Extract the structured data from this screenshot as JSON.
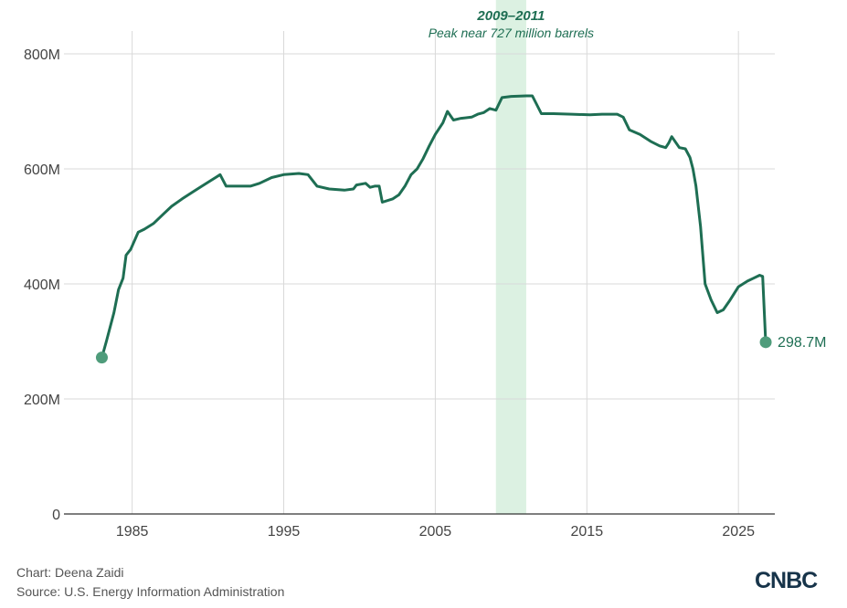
{
  "chart_data": {
    "type": "line",
    "title": "",
    "xlabel": "",
    "ylabel": "",
    "xlim": [
      1980.5,
      2027.4
    ],
    "ylim": [
      0,
      800000000
    ],
    "x_ticks": [
      1985,
      1995,
      2005,
      2015,
      2025
    ],
    "y_ticks": [
      0,
      200000000,
      400000000,
      600000000,
      800000000
    ],
    "y_tick_labels": [
      "0",
      "200M",
      "400M",
      "600M",
      "800M"
    ],
    "grid": true,
    "highlight": {
      "x_start": 2009.0,
      "x_end": 2011.0,
      "title": "2009–2011",
      "subtitle": "Peak near 727 million barrels"
    },
    "end_label": "298.7M",
    "series": [
      {
        "x": [
          1983.0,
          1983.3,
          1983.8,
          1984.1,
          1984.4,
          1984.6,
          1984.9,
          1985.4,
          1985.8,
          1986.4,
          1987.0,
          1987.6,
          1988.3,
          1989.0,
          1989.6,
          1990.2,
          1990.5,
          1990.8,
          1991.2,
          1992.0,
          1992.8,
          1993.4,
          1994.2,
          1995.0,
          1996.0,
          1996.6,
          1997.2,
          1998.0,
          1999.0,
          1999.6,
          1999.8,
          2000.4,
          2000.7,
          2001.0,
          2001.3,
          2001.5,
          2002.2,
          2002.6,
          2003.0,
          2003.4,
          2003.8,
          2004.2,
          2004.6,
          2005.0,
          2005.5,
          2005.8,
          2006.2,
          2006.7,
          2007.4,
          2007.8,
          2008.2,
          2008.6,
          2009.0,
          2009.4,
          2010.0,
          2011.0,
          2011.4,
          2012.0,
          2012.8,
          2014.0,
          2015.2,
          2016.0,
          2017.0,
          2017.4,
          2017.8,
          2018.5,
          2019.2,
          2019.8,
          2020.2,
          2020.4,
          2020.6,
          2021.1,
          2021.5,
          2021.8,
          2022.0,
          2022.2,
          2022.5,
          2022.8,
          2023.2,
          2023.6,
          2024.0,
          2024.4,
          2025.0,
          2025.6,
          2026.0,
          2026.4,
          2026.6,
          2026.8
        ],
        "y": [
          272000000,
          300000000,
          350000000,
          390000000,
          410000000,
          450000000,
          460000000,
          490000000,
          495000000,
          505000000,
          520000000,
          535000000,
          548000000,
          560000000,
          570000000,
          580000000,
          585000000,
          590000000,
          570000000,
          570000000,
          570000000,
          575000000,
          585000000,
          590000000,
          592000000,
          590000000,
          570000000,
          565000000,
          563000000,
          565000000,
          572000000,
          575000000,
          568000000,
          570000000,
          570000000,
          542000000,
          548000000,
          555000000,
          570000000,
          590000000,
          600000000,
          618000000,
          640000000,
          660000000,
          680000000,
          700000000,
          685000000,
          688000000,
          690000000,
          695000000,
          698000000,
          705000000,
          702000000,
          724000000,
          726000000,
          727000000,
          727000000,
          696000000,
          696000000,
          695000000,
          694000000,
          695000000,
          695000000,
          690000000,
          668000000,
          660000000,
          648000000,
          640000000,
          637000000,
          645000000,
          656000000,
          637000000,
          635000000,
          620000000,
          600000000,
          570000000,
          500000000,
          400000000,
          372000000,
          350000000,
          355000000,
          370000000,
          395000000,
          405000000,
          410000000,
          415000000,
          413000000,
          298700000
        ]
      }
    ]
  },
  "colors": {
    "line": "#1e6e53",
    "marker": "#4f9c7b",
    "highlight": "#dcf1e2",
    "grid": "#d9d9d9",
    "annotation": "#1e6e53",
    "logo": "#17344a"
  },
  "footer": {
    "credit": "Chart: Deena Zaidi",
    "source": "Source: U.S. Energy Information Administration"
  },
  "logo": "CNBC"
}
